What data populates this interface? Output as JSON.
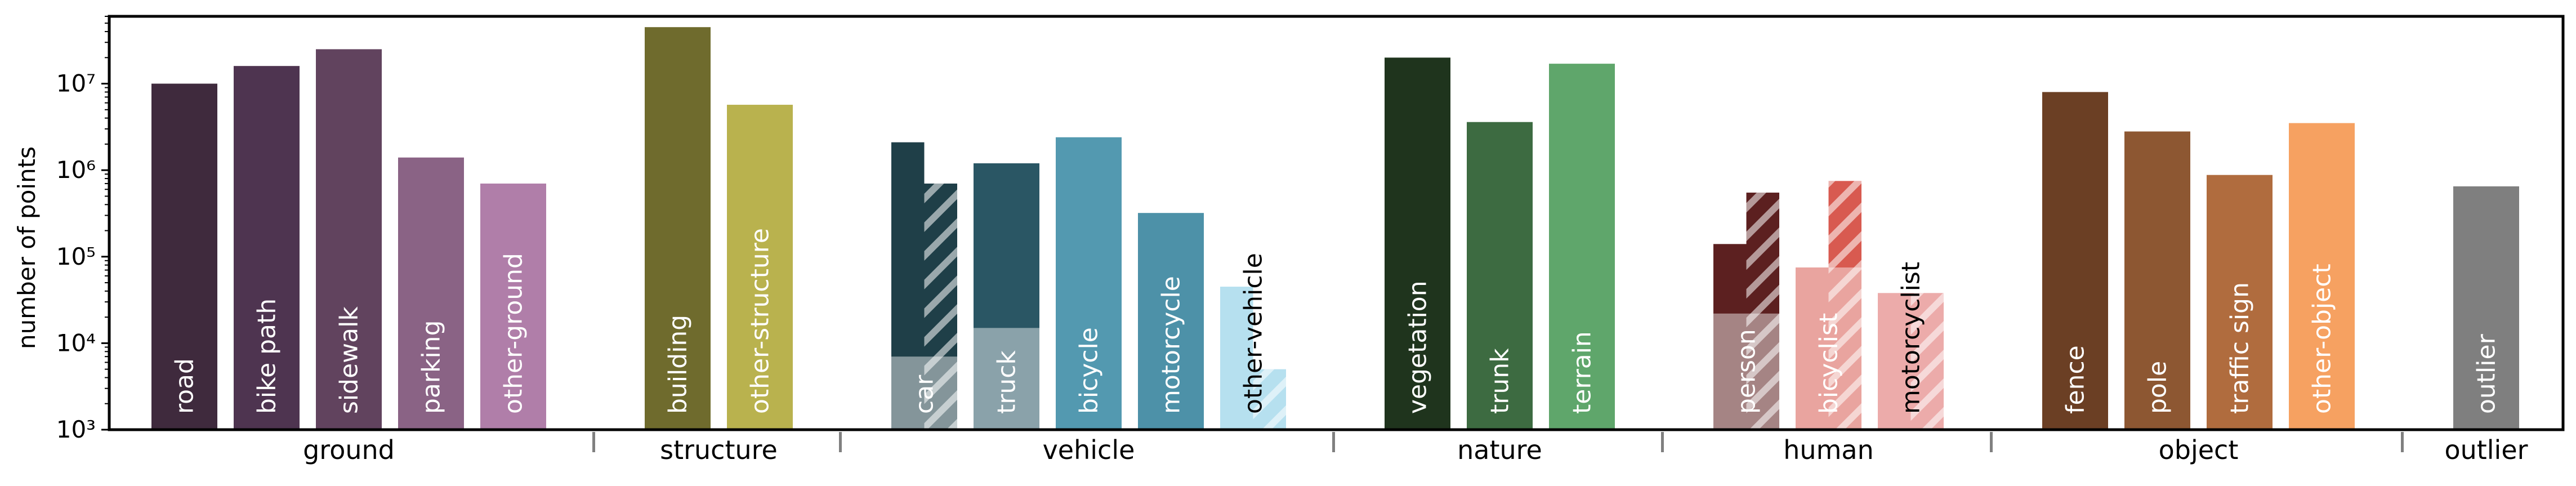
{
  "chart_data": {
    "type": "bar",
    "xlabel": "",
    "ylabel": "number of points",
    "yscale": "log",
    "ylim": [
      1000,
      60000000
    ],
    "yticks": [
      {
        "value": 1000,
        "label": "10³"
      },
      {
        "value": 10000,
        "label": "10⁴"
      },
      {
        "value": 100000,
        "label": "10⁵"
      },
      {
        "value": 1000000,
        "label": "10⁶"
      },
      {
        "value": 10000000,
        "label": "10⁷"
      }
    ],
    "grid": false,
    "legend": "none",
    "groups": [
      {
        "name": "ground",
        "bars": [
          {
            "label": "road",
            "value": 10000000,
            "color": "#3f2a3d"
          },
          {
            "label": "bike path",
            "value": 16000000,
            "color": "#4e3450"
          },
          {
            "label": "sidewalk",
            "value": 25000000,
            "color": "#61435e"
          },
          {
            "label": "parking",
            "value": 1400000,
            "color": "#8a6385"
          },
          {
            "label": "other-ground",
            "value": 700000,
            "color": "#b07ea9"
          }
        ]
      },
      {
        "name": "structure",
        "bars": [
          {
            "label": "building",
            "value": 45000000,
            "color": "#6f6b2d"
          },
          {
            "label": "other-structure",
            "value": 5700000,
            "color": "#b9b24e"
          }
        ]
      },
      {
        "name": "vehicle",
        "bars": [
          {
            "label": "car",
            "value": 2100000,
            "color": "#1f3f48",
            "hatched": 700000,
            "light_level": 7000
          },
          {
            "label": "truck",
            "value": 1200000,
            "color": "#2a5664",
            "light_level": 15000
          },
          {
            "label": "bicycle",
            "value": 2400000,
            "color": "#5399b0"
          },
          {
            "label": "motorcycle",
            "value": 320000,
            "color": "#4d91a8"
          },
          {
            "label": "other-vehicle",
            "value": 45000,
            "color": "#b6e0ef",
            "hatched": 5000
          }
        ]
      },
      {
        "name": "nature",
        "bars": [
          {
            "label": "vegetation",
            "value": 20000000,
            "color": "#1f341d"
          },
          {
            "label": "trunk",
            "value": 3600000,
            "color": "#3d6b41"
          },
          {
            "label": "terrain",
            "value": 17000000,
            "color": "#5fa66b"
          }
        ]
      },
      {
        "name": "human",
        "bars": [
          {
            "label": "person",
            "value": 140000,
            "color": "#5c2020",
            "hatched": 550000,
            "light_level": 22000
          },
          {
            "label": "bicyclist",
            "value": 75000,
            "color": "#d85a50",
            "hatched": 750000,
            "hatched_solid": true,
            "light_level": 75000
          },
          {
            "label": "motorcyclist",
            "value": 38000,
            "color": "#ecabaa",
            "hatched": 38000
          }
        ]
      },
      {
        "name": "object",
        "bars": [
          {
            "label": "fence",
            "value": 8000000,
            "color": "#6b3f24"
          },
          {
            "label": "pole",
            "value": 2800000,
            "color": "#8d5732"
          },
          {
            "label": "traffic sign",
            "value": 880000,
            "color": "#b06c3e"
          },
          {
            "label": "other-object",
            "value": 3500000,
            "color": "#f6a161"
          }
        ]
      },
      {
        "name": "outlier",
        "bars": [
          {
            "label": "outlier",
            "value": 650000,
            "color": "#7f7f7f"
          }
        ]
      }
    ]
  }
}
